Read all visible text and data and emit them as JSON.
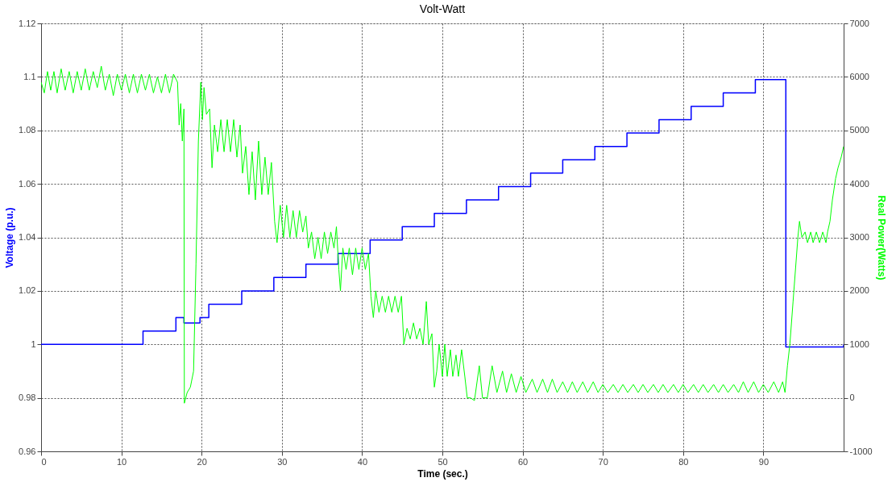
{
  "chart_data": {
    "type": "line",
    "title": "Volt-Watt",
    "xlabel": "Time (sec.)",
    "ylabel": "Voltage (p.u.)",
    "y2label": "Real Power(Watts)",
    "xlim": [
      0,
      100
    ],
    "xticks": [
      0,
      10,
      20,
      30,
      40,
      50,
      60,
      70,
      80,
      90
    ],
    "ylim": [
      0.96,
      1.12
    ],
    "yticks": [
      0.96,
      0.98,
      1,
      1.02,
      1.04,
      1.06,
      1.08,
      1.1,
      1.12
    ],
    "y2lim": [
      -1000,
      7000
    ],
    "y2ticks": [
      -1000,
      0,
      1000,
      2000,
      3000,
      4000,
      5000,
      6000,
      7000
    ],
    "grid": true,
    "line_style": "solid",
    "series": [
      {
        "type": "step",
        "color": "#0000ff",
        "x": [
          0,
          12.7,
          16.8,
          17.8,
          19.8,
          20.9,
          25,
          29,
          33,
          37,
          41,
          45,
          49,
          53,
          57,
          61,
          65,
          69,
          73,
          77,
          81,
          85,
          89,
          92.8,
          100
        ],
        "values": [
          1.0,
          1.005,
          1.01,
          1.008,
          1.01,
          1.015,
          1.02,
          1.025,
          1.03,
          1.034,
          1.039,
          1.044,
          1.049,
          1.054,
          1.059,
          1.064,
          1.069,
          1.074,
          1.079,
          1.084,
          1.089,
          1.094,
          1.099,
          0.999,
          1.0
        ]
      },
      {
        "type": "line",
        "axis": "y2",
        "color": "#00ff00",
        "x": [
          0,
          0.4,
          0.8,
          1.2,
          1.6,
          2.0,
          2.5,
          3.0,
          3.5,
          4.0,
          4.5,
          5.0,
          5.5,
          6.0,
          6.5,
          7.0,
          7.5,
          8.0,
          8.5,
          9.0,
          9.5,
          10,
          10.5,
          11,
          11.5,
          12,
          12.5,
          13,
          13.5,
          14,
          14.5,
          15,
          15.5,
          16,
          16.5,
          17,
          17.2,
          17.4,
          17.6,
          17.8,
          17.85,
          18.2,
          18.6,
          19.0,
          19.3,
          19.6,
          19.9,
          20.1,
          20.3,
          20.6,
          21.0,
          21.3,
          21.6,
          22.0,
          22.4,
          22.8,
          23.2,
          23.6,
          24.0,
          24.4,
          24.8,
          25.1,
          25.5,
          25.9,
          26.3,
          26.7,
          27.1,
          27.5,
          27.9,
          28.3,
          28.7,
          29.1,
          29.4,
          29.8,
          30.2,
          30.6,
          31.0,
          31.4,
          31.8,
          32.2,
          32.6,
          33.0,
          33.3,
          33.7,
          34.1,
          34.5,
          34.9,
          35.3,
          35.7,
          36.1,
          36.5,
          36.8,
          37.1,
          37.3,
          37.6,
          38.0,
          38.4,
          38.8,
          39.2,
          39.6,
          40.0,
          40.4,
          40.8,
          41.1,
          41.4,
          41.7,
          42.1,
          42.5,
          42.9,
          43.3,
          43.7,
          44.1,
          44.5,
          44.9,
          45.2,
          45.6,
          46.0,
          46.4,
          46.8,
          47.2,
          47.6,
          48.0,
          48.3,
          48.7,
          49.0,
          49.3,
          49.6,
          50.0,
          50.3,
          50.6,
          51.0,
          51.3,
          51.7,
          52.0,
          52.4,
          52.8,
          53.1,
          53.5,
          54.0,
          54.6,
          55.0,
          55.6,
          56.2,
          56.8,
          57.5,
          58.0,
          58.6,
          59.2,
          59.8,
          60.4,
          61.2,
          61.8,
          62.5,
          63.1,
          63.7,
          64.3,
          65.0,
          65.6,
          66.2,
          66.8,
          67.5,
          68.1,
          68.8,
          69.4,
          70.0,
          70.6,
          71.3,
          71.9,
          72.5,
          73.1,
          73.8,
          74.4,
          75.0,
          75.6,
          76.3,
          76.9,
          77.5,
          78.1,
          78.8,
          79.4,
          80.0,
          80.6,
          81.3,
          81.9,
          82.5,
          83.1,
          83.8,
          84.4,
          85.0,
          85.6,
          86.3,
          86.9,
          87.5,
          88.1,
          88.8,
          89.4,
          90.0,
          90.6,
          91.3,
          91.9,
          92.4,
          92.7,
          93.0,
          93.3,
          93.7,
          94.3,
          94.5,
          94.8,
          95.2,
          95.5,
          95.9,
          96.2,
          96.6,
          97.0,
          97.4,
          97.8,
          98.0,
          98.3,
          98.6,
          99.0,
          99.3,
          99.7,
          100
        ],
        "values": [
          5900,
          5700,
          6100,
          5750,
          6100,
          5700,
          6150,
          5750,
          6100,
          5700,
          6100,
          5750,
          6150,
          5750,
          6100,
          5800,
          6200,
          5750,
          6050,
          5650,
          6050,
          5750,
          6050,
          5700,
          6050,
          5700,
          6050,
          5750,
          6050,
          5700,
          6000,
          5700,
          6050,
          5700,
          6050,
          5900,
          5100,
          5500,
          4800,
          5400,
          -100,
          100,
          200,
          500,
          2500,
          4800,
          5900,
          5200,
          5800,
          5300,
          5400,
          4300,
          5100,
          4600,
          5200,
          4600,
          5200,
          4600,
          5200,
          4500,
          5100,
          4200,
          4700,
          3800,
          4600,
          3700,
          4800,
          3800,
          4500,
          3800,
          4400,
          3300,
          2900,
          3600,
          3000,
          3600,
          3000,
          3500,
          3000,
          3500,
          3100,
          3400,
          2800,
          3100,
          2600,
          3000,
          2600,
          3100,
          2700,
          3100,
          2800,
          3200,
          2400,
          2000,
          2800,
          2400,
          2800,
          2300,
          2800,
          2400,
          2800,
          2400,
          2700,
          1900,
          1500,
          2000,
          1600,
          1900,
          1600,
          1900,
          1600,
          1900,
          1600,
          1900,
          1000,
          1300,
          1100,
          1400,
          1100,
          1300,
          1000,
          1800,
          1000,
          1200,
          200,
          500,
          1000,
          400,
          1000,
          400,
          900,
          400,
          800,
          400,
          900,
          400,
          0,
          0,
          -50,
          600,
          0,
          0,
          600,
          100,
          500,
          100,
          450,
          100,
          400,
          100,
          350,
          100,
          350,
          100,
          350,
          100,
          300,
          100,
          300,
          100,
          300,
          100,
          300,
          100,
          250,
          100,
          250,
          100,
          250,
          100,
          250,
          100,
          250,
          100,
          250,
          100,
          250,
          100,
          250,
          100,
          250,
          100,
          250,
          100,
          250,
          100,
          250,
          100,
          250,
          100,
          250,
          100,
          300,
          100,
          300,
          100,
          250,
          100,
          300,
          100,
          300,
          100,
          600,
          1000,
          1800,
          3000,
          3300,
          3000,
          3100,
          2900,
          3100,
          2900,
          3100,
          2900,
          3100,
          2900,
          3100,
          3300,
          3700,
          4100,
          4300,
          4500,
          4700
        ]
      }
    ]
  }
}
